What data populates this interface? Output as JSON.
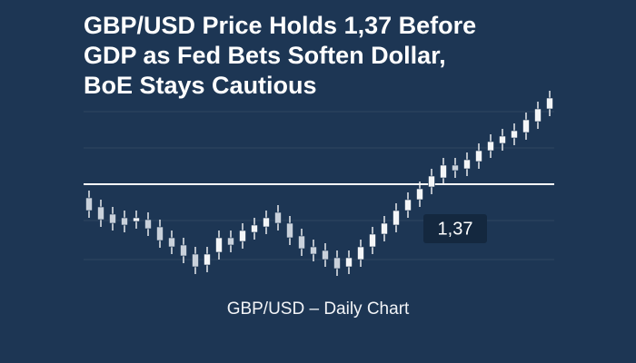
{
  "chart_data": {
    "type": "candlestick",
    "title": [
      "GBP/USD Price Holds 1,37 Before",
      "GDP as Fed Bets Soften Dollar,",
      "BoE Stays Cautious"
    ],
    "x_label": "GBP/USD – Daily Chart",
    "ylim": [
      1.3466,
      1.3916
    ],
    "color": "#f4f6f8",
    "reference_line": {
      "value": 1.37,
      "label": "1,37",
      "color": "#ffffff"
    },
    "open": [
      1.367,
      1.365,
      1.3634,
      1.3626,
      1.3618,
      1.3622,
      1.3606,
      1.3582,
      1.3566,
      1.3546,
      1.3522,
      1.355,
      1.3582,
      1.3574,
      1.3594,
      1.3606,
      1.3638,
      1.3614,
      1.3586,
      1.3562,
      1.3554,
      1.3538,
      1.3518,
      1.3534,
      1.3562,
      1.359,
      1.361,
      1.3642,
      1.3666,
      1.3694,
      1.3714,
      1.3742,
      1.3734,
      1.375,
      1.3774,
      1.379,
      1.3802,
      1.3814,
      1.3838,
      1.3866
    ],
    "high": [
      1.3686,
      1.3666,
      1.365,
      1.3642,
      1.3642,
      1.3638,
      1.3622,
      1.3598,
      1.3582,
      1.3562,
      1.3562,
      1.3598,
      1.3598,
      1.3614,
      1.3626,
      1.3642,
      1.3654,
      1.363,
      1.3602,
      1.3578,
      1.357,
      1.3554,
      1.3554,
      1.3578,
      1.3606,
      1.363,
      1.3658,
      1.3682,
      1.3706,
      1.3734,
      1.3758,
      1.3758,
      1.377,
      1.379,
      1.381,
      1.3822,
      1.3834,
      1.3858,
      1.3882,
      1.3906
    ],
    "low": [
      1.3626,
      1.3606,
      1.3598,
      1.3594,
      1.3602,
      1.3586,
      1.356,
      1.3546,
      1.3526,
      1.3502,
      1.3506,
      1.3534,
      1.355,
      1.3558,
      1.3578,
      1.359,
      1.3598,
      1.3566,
      1.3542,
      1.353,
      1.3518,
      1.3498,
      1.3502,
      1.3518,
      1.3546,
      1.3574,
      1.3594,
      1.3626,
      1.365,
      1.3678,
      1.3698,
      1.3714,
      1.3718,
      1.3734,
      1.3758,
      1.3774,
      1.3786,
      1.3798,
      1.3822,
      1.385
    ],
    "close": [
      1.3642,
      1.3622,
      1.3614,
      1.361,
      1.3626,
      1.3602,
      1.3576,
      1.3562,
      1.3542,
      1.3518,
      1.3546,
      1.3582,
      1.3566,
      1.3598,
      1.361,
      1.3626,
      1.3614,
      1.3582,
      1.3558,
      1.3546,
      1.3534,
      1.3514,
      1.3538,
      1.3562,
      1.359,
      1.3614,
      1.3642,
      1.3666,
      1.369,
      1.3718,
      1.3742,
      1.373,
      1.3754,
      1.3774,
      1.3794,
      1.3806,
      1.3818,
      1.3842,
      1.3866,
      1.389
    ]
  }
}
